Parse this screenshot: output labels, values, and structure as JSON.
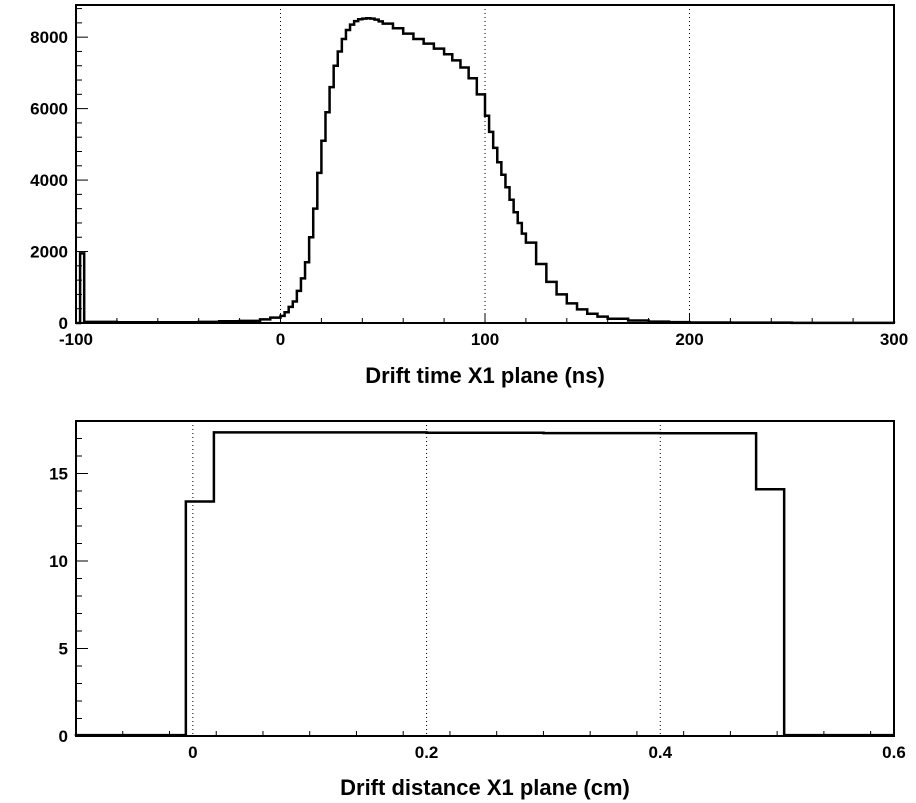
{
  "chart_data": [
    {
      "type": "histogram",
      "xlabel": "Drift time X1 plane (ns)",
      "ylabel": "",
      "xlim": [
        -100,
        300
      ],
      "ylim": [
        0,
        8900
      ],
      "x_ticks": [
        "-100",
        "0",
        "100",
        "200",
        "300"
      ],
      "y_ticks": [
        "0",
        "2000",
        "4000",
        "6000",
        "8000"
      ],
      "x_grid": [
        0,
        100,
        200
      ],
      "series": [
        {
          "x": [
            -100,
            -98,
            -96,
            -80,
            -60,
            -40,
            -30,
            -20,
            -10,
            -5,
            0,
            2,
            4,
            6,
            8,
            10,
            12,
            14,
            16,
            18,
            20,
            22,
            24,
            26,
            28,
            30,
            32,
            34,
            36,
            38,
            40,
            42,
            44,
            46,
            48,
            50,
            55,
            60,
            65,
            70,
            75,
            80,
            84,
            88,
            92,
            96,
            100,
            102,
            104,
            106,
            108,
            110,
            112,
            114,
            116,
            118,
            120,
            125,
            130,
            135,
            140,
            145,
            150,
            155,
            160,
            170,
            180,
            190,
            200,
            220,
            250,
            280,
            300
          ],
          "y": [
            0,
            1950,
            30,
            20,
            20,
            30,
            50,
            60,
            100,
            150,
            200,
            300,
            450,
            600,
            900,
            1250,
            1700,
            2400,
            3200,
            4200,
            5100,
            5900,
            6600,
            7200,
            7600,
            7950,
            8200,
            8350,
            8450,
            8500,
            8520,
            8530,
            8520,
            8490,
            8440,
            8380,
            8250,
            8100,
            7950,
            7820,
            7680,
            7520,
            7350,
            7150,
            6850,
            6400,
            5800,
            5350,
            4900,
            4500,
            4150,
            3800,
            3450,
            3100,
            2800,
            2500,
            2250,
            1650,
            1150,
            800,
            550,
            380,
            260,
            180,
            120,
            70,
            40,
            25,
            15,
            10,
            5,
            3,
            0
          ]
        }
      ]
    },
    {
      "type": "histogram",
      "xlabel": "Drift distance X1 plane (cm)",
      "ylabel": "",
      "xlim": [
        -0.1,
        0.6
      ],
      "ylim": [
        0,
        18
      ],
      "x_ticks": [
        "0",
        "0.2",
        "0.4",
        "0.6"
      ],
      "y_ticks": [
        "0",
        "5",
        "10",
        "15"
      ],
      "x_grid": [
        0,
        0.2,
        0.4
      ],
      "series": [
        {
          "x": [
            -0.1,
            -0.006,
            0.018,
            0.1,
            0.2,
            0.3,
            0.4,
            0.482,
            0.506,
            0.6
          ],
          "y": [
            0.05,
            13.4,
            17.35,
            17.35,
            17.33,
            17.31,
            17.3,
            14.1,
            0.05,
            0.05
          ]
        }
      ]
    }
  ]
}
